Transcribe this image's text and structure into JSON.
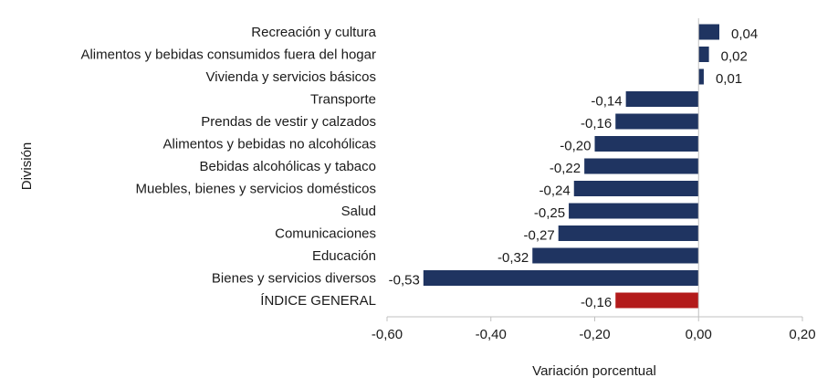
{
  "chart_data": {
    "type": "bar",
    "orientation": "horizontal",
    "categories": [
      "Recreación y cultura",
      "Alimentos y bebidas consumidos fuera del hogar",
      "Vivienda y servicios básicos",
      "Transporte",
      "Prendas de vestir y calzados",
      "Alimentos y bebidas no alcohólicas",
      "Bebidas alcohólicas y tabaco",
      "Muebles, bienes y servicios domésticos",
      "Salud",
      "Comunicaciones",
      "Educación",
      "Bienes y servicios diversos",
      "ÍNDICE GENERAL"
    ],
    "values": [
      0.04,
      0.02,
      0.01,
      -0.14,
      -0.16,
      -0.2,
      -0.22,
      -0.24,
      -0.25,
      -0.27,
      -0.32,
      -0.53,
      -0.16
    ],
    "data_labels": [
      "0,04",
      "0,02",
      "0,01",
      "-0,14",
      "-0,16",
      "-0,20",
      "-0,22",
      "-0,24",
      "-0,25",
      "-0,27",
      "-0,32",
      "-0,53",
      "-0,16"
    ],
    "title": "",
    "xlabel": "Variación porcentual",
    "ylabel": "División",
    "xlim": [
      -0.6,
      0.2
    ],
    "x_ticks": [
      -0.6,
      -0.4,
      -0.2,
      0.0,
      0.2
    ],
    "x_tick_labels": [
      "-0,60",
      "-0,40",
      "-0,20",
      "0,00",
      "0,20"
    ],
    "grid": false,
    "legend": "none",
    "colors": {
      "default_bar": "#1f3461",
      "highlight_bar": "#b31b1b",
      "axis_line": "#c0c0c0",
      "text": "#1a1a1a"
    },
    "highlight_category": "ÍNDICE GENERAL"
  }
}
